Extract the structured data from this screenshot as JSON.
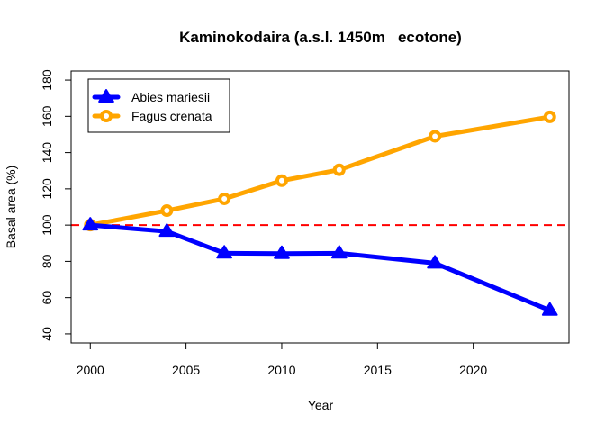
{
  "chart_data": {
    "type": "line",
    "title": "Kaminokodaira (a.s.l. 1450m   ecotone)",
    "xlabel": "Year",
    "ylabel": "Basal area (%)",
    "xlim": [
      1999,
      2025
    ],
    "ylim": [
      35,
      185
    ],
    "xticks": [
      2000,
      2005,
      2010,
      2015,
      2020
    ],
    "yticks": [
      40,
      60,
      80,
      100,
      120,
      140,
      160,
      180
    ],
    "legend_position": "top-left",
    "grid": false,
    "reference_line": {
      "y": 100,
      "color": "#ff0000",
      "style": "dashed"
    },
    "x": [
      2000,
      2004,
      2007,
      2010,
      2013,
      2018,
      2024
    ],
    "series": [
      {
        "name": "Abies mariesii",
        "color": "#0000ff",
        "marker": "triangle",
        "values": [
          100,
          96.5,
          84.5,
          84.3,
          84.5,
          79,
          53
        ]
      },
      {
        "name": "Fagus crenata",
        "color": "#ffa500",
        "marker": "circle",
        "values": [
          100,
          108,
          114.5,
          124.5,
          130.5,
          149,
          159.7
        ]
      }
    ]
  }
}
